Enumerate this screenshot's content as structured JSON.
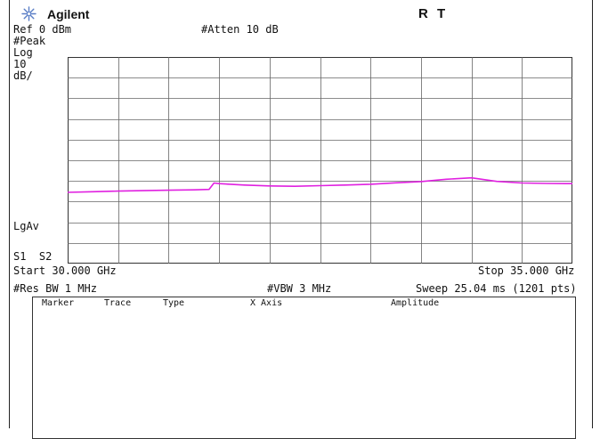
{
  "header": {
    "brand": "Agilent",
    "indicators": "R T"
  },
  "settings": {
    "ref_level": "Ref 0 dBm",
    "atten": "#Atten 10 dB",
    "detector": "#Peak",
    "scale_type": "Log",
    "scale_value": "10",
    "scale_unit": "dB/",
    "avg_type": "LgAv",
    "sweep_flags": "S1  S2"
  },
  "footer": {
    "start_freq": "Start 30.000 GHz",
    "stop_freq": "Stop 35.000 GHz",
    "res_bw": "#Res BW 1 MHz",
    "vbw": "#VBW 3 MHz",
    "sweep": "Sweep 25.04 ms (1201 pts)"
  },
  "marker_table": {
    "columns": [
      "Marker",
      "Trace",
      "Type",
      "X Axis",
      "Amplitude"
    ]
  },
  "chart_data": {
    "type": "line",
    "x_range": [
      30.0,
      35.0
    ],
    "y_range": [
      -100,
      0
    ],
    "x_divisions": 10,
    "y_divisions": 10,
    "grid": true,
    "trace_color": "#e020e0",
    "series": [
      {
        "x": [
          30.0,
          30.25,
          30.5,
          30.75,
          31.0,
          31.25,
          31.4,
          31.45,
          31.5,
          31.75,
          32.0,
          32.25,
          32.5,
          32.75,
          33.0,
          33.25,
          33.5,
          33.75,
          34.0,
          34.25,
          34.5,
          34.75,
          35.0
        ],
        "values": [
          -65.5,
          -65.2,
          -64.9,
          -64.7,
          -64.5,
          -64.3,
          -64.1,
          -61.0,
          -61.3,
          -62.0,
          -62.4,
          -62.6,
          -62.3,
          -62.0,
          -61.6,
          -60.9,
          -60.3,
          -59.2,
          -58.5,
          -60.2,
          -61.0,
          -61.2,
          -61.3
        ]
      }
    ]
  }
}
